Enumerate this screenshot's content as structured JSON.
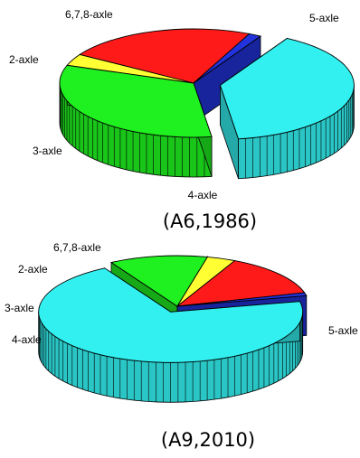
{
  "chart_data": [
    {
      "type": "pie",
      "title": "(A6,1986)",
      "style": "3d-exploded",
      "categories": [
        "5-axle",
        "4-axle",
        "3-axle",
        "2-axle",
        "6,7,8-axle"
      ],
      "values": [
        39.5,
        32.5,
        3.5,
        23.0,
        1.5
      ],
      "colors": [
        "#33f0f0",
        "#1ff01f",
        "#ffff33",
        "#ff1a1a",
        "#2233dd"
      ],
      "exploded": [
        "5-axle"
      ]
    },
    {
      "type": "pie",
      "title": "(A9,2010)",
      "style": "3d-exploded",
      "categories": [
        "5-axle",
        "4-axle",
        "3-axle",
        "2-axle",
        "6,7,8-axle"
      ],
      "values": [
        70.0,
        12.0,
        3.5,
        13.5,
        1.0
      ],
      "colors": [
        "#33f0f0",
        "#1ff01f",
        "#ffff33",
        "#ff1a1a",
        "#2233dd"
      ],
      "exploded": [
        "5-axle"
      ]
    }
  ]
}
